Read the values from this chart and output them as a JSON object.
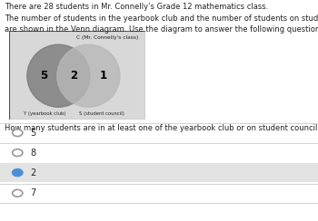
{
  "title_line1": "There are 28 students in Mr. Connelly’s Grade 12 mathematics class.",
  "title_line2": "The number of students in the yearbook club and the number of students on student council",
  "title_line3": "are shown in the Venn diagram. Use the diagram to answer the following questions.",
  "venn_title": "C (Mr. Connelly's class)",
  "label_y": "Y (yearbook club)",
  "label_s": "S (student council)",
  "num_left": "5",
  "num_center": "2",
  "num_right": "1",
  "question": "How many students are in at least one of the yearbook club or on student council?",
  "options": [
    "5",
    "8",
    "2",
    "7"
  ],
  "selected_option": 2,
  "bg_color": "#ffffff",
  "venn_box_color": "#d8d8d8",
  "circle_left_color": "#7a7a7a",
  "circle_right_color": "#b8b8b8",
  "selected_bg": "#e3e3e3",
  "selected_circle_color": "#4a90d9",
  "unselected_circle_color": "#ffffff",
  "unselected_circle_edge": "#999999",
  "separator_color": "#cccccc",
  "text_color": "#222222"
}
